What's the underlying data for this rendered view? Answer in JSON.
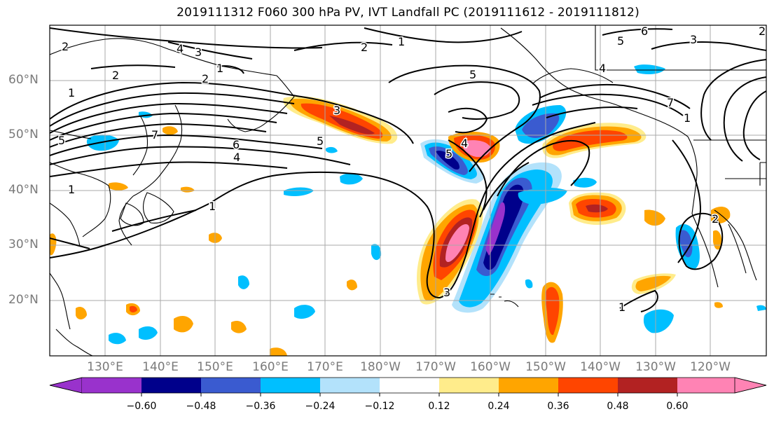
{
  "title": "2019111312 F060 300 hPa PV, IVT Landfall PC (2019111612 - 2019111812)",
  "lat_labels": [
    "60°N",
    "50°N",
    "40°N",
    "30°N",
    "20°N"
  ],
  "lon_labels": [
    "130°E",
    "140°E",
    "150°E",
    "160°E",
    "170°E",
    "180°W",
    "170°W",
    "160°W",
    "150°W",
    "140°W",
    "130°W",
    "120°W"
  ],
  "colorbar": {
    "colors": [
      "#9932cc",
      "#00008b",
      "#3a5bd0",
      "#00bfff",
      "#b3e2fb",
      "#ffffff",
      "#ffec8b",
      "#ffa500",
      "#ff4500",
      "#b22222",
      "#ff83b4"
    ],
    "tick_labels": [
      "−0.60",
      "−0.48",
      "−0.36",
      "−0.24",
      "−0.12",
      "0.12",
      "0.24",
      "0.36",
      "0.48",
      "0.60"
    ]
  },
  "contour_labels": [
    "2",
    "4",
    "3",
    "2",
    "1",
    "6",
    "3",
    "2",
    "1",
    "5",
    "2",
    "1",
    "1",
    "5",
    "7",
    "6",
    "4",
    "3",
    "5",
    "4",
    "5",
    "1",
    "1",
    "4",
    "3",
    "2",
    "5",
    "7",
    "2",
    "1"
  ]
}
